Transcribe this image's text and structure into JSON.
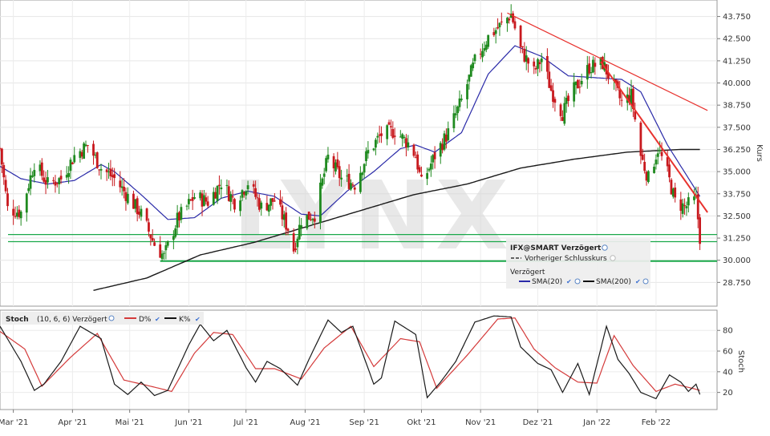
{
  "chart_data": [
    {
      "type": "candlestick",
      "watermark": "LYNX",
      "ylabel": "Kurs",
      "ylim": [
        27.5,
        44.5
      ],
      "yticks": [
        "43.750",
        "42.500",
        "41.250",
        "40.000",
        "38.750",
        "37.500",
        "36.250",
        "35.000",
        "33.750",
        "32.500",
        "31.250",
        "30.000",
        "28.750"
      ],
      "ytick_values": [
        43.75,
        42.5,
        41.25,
        40.0,
        38.75,
        37.5,
        36.25,
        35.0,
        33.75,
        32.5,
        31.25,
        30.0,
        28.75
      ],
      "grid": true,
      "legend_box": {
        "title": "IFX@SMART Verzögert",
        "prev_close_label": "Vorheriger Schlusskurs",
        "delayed_label": "Verzögert",
        "sma20_label": "SMA(20)",
        "sma200_label": "SMA(200)"
      },
      "colors": {
        "up": "#1f8a1f",
        "down": "#c8191e",
        "sma20": "#2a2aa8",
        "sma200": "#1a1a1a",
        "trend": "#e8322e",
        "support": "#1aa84a"
      },
      "support_levels": [
        31.45,
        31.05,
        29.95
      ],
      "trend_lines": [
        {
          "from": [
            "2021-11-15",
            43.95
          ],
          "to": [
            "2022-02-28",
            38.45
          ]
        },
        {
          "from": [
            "2022-01-03",
            41.2
          ],
          "to": [
            "2022-02-28",
            32.7
          ]
        }
      ],
      "anchors": [
        [
          "2021-02-22",
          36.3
        ],
        [
          "2021-02-26",
          32.9
        ],
        [
          "2021-03-05",
          32.7
        ],
        [
          "2021-03-12",
          35.5
        ],
        [
          "2021-03-19",
          34.3
        ],
        [
          "2021-03-26",
          34.6
        ],
        [
          "2021-04-02",
          35.9
        ],
        [
          "2021-04-09",
          36.5
        ],
        [
          "2021-04-16",
          35.2
        ],
        [
          "2021-04-23",
          34.6
        ],
        [
          "2021-04-30",
          33.6
        ],
        [
          "2021-05-07",
          32.6
        ],
        [
          "2021-05-14",
          30.9
        ],
        [
          "2021-05-19",
          30.2
        ],
        [
          "2021-05-26",
          32.3
        ],
        [
          "2021-06-04",
          33.6
        ],
        [
          "2021-06-11",
          33.3
        ],
        [
          "2021-06-18",
          34.4
        ],
        [
          "2021-06-25",
          33.3
        ],
        [
          "2021-07-02",
          34.4
        ],
        [
          "2021-07-09",
          33.0
        ],
        [
          "2021-07-16",
          33.4
        ],
        [
          "2021-07-23",
          31.8
        ],
        [
          "2021-07-26",
          30.6
        ],
        [
          "2021-07-30",
          32.3
        ],
        [
          "2021-08-06",
          32.6
        ],
        [
          "2021-08-13",
          35.8
        ],
        [
          "2021-08-20",
          34.6
        ],
        [
          "2021-08-27",
          34.3
        ],
        [
          "2021-09-03",
          36.1
        ],
        [
          "2021-09-10",
          37.1
        ],
        [
          "2021-09-17",
          37.3
        ],
        [
          "2021-09-24",
          36.6
        ],
        [
          "2021-09-28",
          35.9
        ],
        [
          "2021-10-01",
          34.3
        ],
        [
          "2021-10-08",
          35.9
        ],
        [
          "2021-10-15",
          37.2
        ],
        [
          "2021-10-22",
          39.0
        ],
        [
          "2021-10-29",
          41.2
        ],
        [
          "2021-11-05",
          42.6
        ],
        [
          "2021-11-12",
          43.3
        ],
        [
          "2021-11-17",
          43.9
        ],
        [
          "2021-11-22",
          41.9
        ],
        [
          "2021-11-29",
          40.6
        ],
        [
          "2021-12-03",
          41.4
        ],
        [
          "2021-12-08",
          39.6
        ],
        [
          "2021-12-14",
          38.3
        ],
        [
          "2021-12-20",
          39.6
        ],
        [
          "2021-12-28",
          40.9
        ],
        [
          "2022-01-04",
          41.1
        ],
        [
          "2022-01-10",
          39.8
        ],
        [
          "2022-01-14",
          38.9
        ],
        [
          "2022-01-19",
          39.3
        ],
        [
          "2022-01-24",
          35.9
        ],
        [
          "2022-01-28",
          34.6
        ],
        [
          "2022-02-02",
          36.3
        ],
        [
          "2022-02-07",
          34.9
        ],
        [
          "2022-02-11",
          33.3
        ],
        [
          "2022-02-16",
          33.0
        ],
        [
          "2022-02-22",
          33.4
        ],
        [
          "2022-02-24",
          31.3
        ]
      ],
      "sma20_anchors": [
        [
          "2021-02-22",
          35.3
        ],
        [
          "2021-03-05",
          34.6
        ],
        [
          "2021-03-19",
          34.3
        ],
        [
          "2021-04-02",
          34.5
        ],
        [
          "2021-04-16",
          35.4
        ],
        [
          "2021-04-23",
          35.0
        ],
        [
          "2021-05-07",
          33.7
        ],
        [
          "2021-05-21",
          32.3
        ],
        [
          "2021-06-04",
          32.4
        ],
        [
          "2021-06-18",
          33.5
        ],
        [
          "2021-07-02",
          33.9
        ],
        [
          "2021-07-16",
          33.6
        ],
        [
          "2021-07-30",
          32.6
        ],
        [
          "2021-08-09",
          32.5
        ],
        [
          "2021-08-23",
          33.9
        ],
        [
          "2021-09-06",
          35.0
        ],
        [
          "2021-09-20",
          36.3
        ],
        [
          "2021-09-28",
          36.5
        ],
        [
          "2021-10-08",
          36.1
        ],
        [
          "2021-10-22",
          37.2
        ],
        [
          "2021-11-05",
          40.5
        ],
        [
          "2021-11-19",
          42.1
        ],
        [
          "2021-12-03",
          41.5
        ],
        [
          "2021-12-17",
          40.4
        ],
        [
          "2021-12-31",
          40.3
        ],
        [
          "2022-01-14",
          40.2
        ],
        [
          "2022-01-24",
          39.5
        ],
        [
          "2022-02-07",
          36.5
        ],
        [
          "2022-02-24",
          33.6
        ]
      ],
      "sma200_anchors": [
        [
          "2021-04-12",
          28.3
        ],
        [
          "2021-05-10",
          29.0
        ],
        [
          "2021-06-07",
          30.3
        ],
        [
          "2021-07-05",
          31.0
        ],
        [
          "2021-08-02",
          31.9
        ],
        [
          "2021-08-30",
          32.8
        ],
        [
          "2021-09-27",
          33.7
        ],
        [
          "2021-10-25",
          34.3
        ],
        [
          "2021-11-22",
          35.2
        ],
        [
          "2021-12-20",
          35.7
        ],
        [
          "2022-01-17",
          36.1
        ],
        [
          "2022-02-14",
          36.25
        ],
        [
          "2022-02-24",
          36.25
        ]
      ]
    },
    {
      "type": "line",
      "title": "Stoch",
      "params": "(10, 6, 6) Verzögert",
      "series_labels": {
        "d": "D%",
        "k": "K%"
      },
      "ylabel": "Stoch",
      "ylim": [
        5,
        98
      ],
      "yticks": [
        "80",
        "60",
        "40",
        "20"
      ],
      "ytick_values": [
        80,
        60,
        40,
        20
      ],
      "colors": {
        "d": "#d43a3a",
        "k": "#1a1a1a"
      },
      "k_anchors": [
        [
          "2021-02-22",
          84
        ],
        [
          "2021-03-05",
          50
        ],
        [
          "2021-03-12",
          22
        ],
        [
          "2021-03-17",
          28
        ],
        [
          "2021-03-26",
          50
        ],
        [
          "2021-04-05",
          84
        ],
        [
          "2021-04-16",
          72
        ],
        [
          "2021-04-23",
          28
        ],
        [
          "2021-04-30",
          18
        ],
        [
          "2021-05-07",
          30
        ],
        [
          "2021-05-14",
          17
        ],
        [
          "2021-05-21",
          22
        ],
        [
          "2021-06-01",
          66
        ],
        [
          "2021-06-07",
          86
        ],
        [
          "2021-06-14",
          70
        ],
        [
          "2021-06-21",
          80
        ],
        [
          "2021-07-01",
          44
        ],
        [
          "2021-07-06",
          30
        ],
        [
          "2021-07-12",
          50
        ],
        [
          "2021-07-19",
          43
        ],
        [
          "2021-07-28",
          27
        ],
        [
          "2021-08-03",
          52
        ],
        [
          "2021-08-13",
          90
        ],
        [
          "2021-08-20",
          78
        ],
        [
          "2021-08-26",
          84
        ],
        [
          "2021-09-06",
          28
        ],
        [
          "2021-09-10",
          34
        ],
        [
          "2021-09-17",
          89
        ],
        [
          "2021-09-28",
          76
        ],
        [
          "2021-10-04",
          15
        ],
        [
          "2021-10-11",
          30
        ],
        [
          "2021-10-19",
          50
        ],
        [
          "2021-10-29",
          88
        ],
        [
          "2021-11-08",
          94
        ],
        [
          "2021-11-17",
          93
        ],
        [
          "2021-11-22",
          64
        ],
        [
          "2021-12-01",
          48
        ],
        [
          "2021-12-08",
          42
        ],
        [
          "2021-12-14",
          20
        ],
        [
          "2021-12-22",
          48
        ],
        [
          "2021-12-28",
          18
        ],
        [
          "2022-01-06",
          84
        ],
        [
          "2022-01-12",
          52
        ],
        [
          "2022-01-18",
          38
        ],
        [
          "2022-01-24",
          20
        ],
        [
          "2022-02-01",
          14
        ],
        [
          "2022-02-08",
          37
        ],
        [
          "2022-02-14",
          30
        ],
        [
          "2022-02-18",
          21
        ],
        [
          "2022-02-22",
          28
        ],
        [
          "2022-02-24",
          18
        ]
      ],
      "d_anchors": [
        [
          "2021-02-22",
          79
        ],
        [
          "2021-03-07",
          62
        ],
        [
          "2021-03-16",
          26
        ],
        [
          "2021-03-31",
          54
        ],
        [
          "2021-04-14",
          77
        ],
        [
          "2021-04-28",
          32
        ],
        [
          "2021-05-12",
          26
        ],
        [
          "2021-05-23",
          21
        ],
        [
          "2021-06-04",
          58
        ],
        [
          "2021-06-14",
          78
        ],
        [
          "2021-06-24",
          76
        ],
        [
          "2021-07-06",
          43
        ],
        [
          "2021-07-16",
          43
        ],
        [
          "2021-07-30",
          33
        ],
        [
          "2021-08-11",
          63
        ],
        [
          "2021-08-25",
          84
        ],
        [
          "2021-09-06",
          45
        ],
        [
          "2021-09-20",
          72
        ],
        [
          "2021-09-30",
          69
        ],
        [
          "2021-10-09",
          24
        ],
        [
          "2021-10-25",
          56
        ],
        [
          "2021-11-10",
          91
        ],
        [
          "2021-11-19",
          92
        ],
        [
          "2021-11-29",
          62
        ],
        [
          "2021-12-10",
          44
        ],
        [
          "2021-12-22",
          30
        ],
        [
          "2022-01-01",
          29
        ],
        [
          "2022-01-10",
          75
        ],
        [
          "2022-01-20",
          46
        ],
        [
          "2022-02-01",
          21
        ],
        [
          "2022-02-11",
          28
        ],
        [
          "2022-02-20",
          24
        ],
        [
          "2022-02-24",
          22
        ]
      ]
    }
  ],
  "x_axis": {
    "labels": [
      "Mar '21",
      "Apr '21",
      "Mai '21",
      "Jun '21",
      "Jul '21",
      "Aug '21",
      "Sep '21",
      "Okt '21",
      "Nov '21",
      "Dez '21",
      "Jan '22",
      "Feb '22"
    ],
    "label_dates": [
      "2021-03-01",
      "2021-04-01",
      "2021-05-01",
      "2021-06-01",
      "2021-07-01",
      "2021-08-01",
      "2021-09-01",
      "2021-10-01",
      "2021-11-01",
      "2021-12-01",
      "2022-01-01",
      "2022-02-01"
    ],
    "range": [
      "2021-02-22",
      "2022-03-05"
    ]
  }
}
